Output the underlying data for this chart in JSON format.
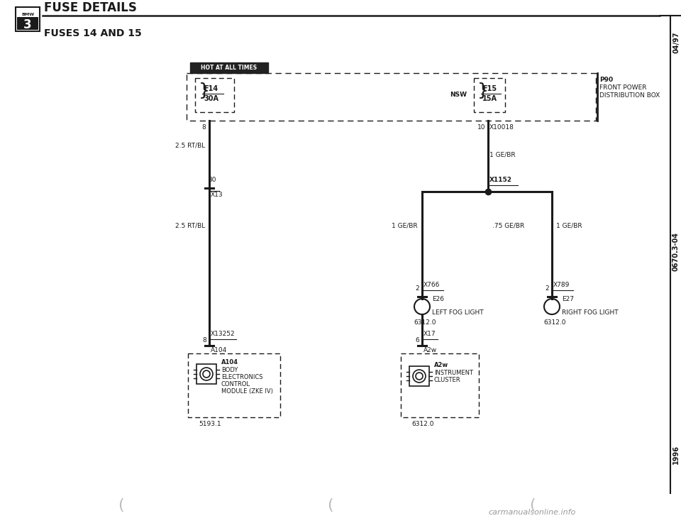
{
  "title": "FUSE DETAILS",
  "subtitle": "FUSES 14 AND 15",
  "bg_color": "#ffffff",
  "diagram_color": "#1a1a1a",
  "right_sidebar_labels": [
    "04/97",
    "0670.3-04",
    "1996"
  ],
  "watermark": "carmanualsonline.info",
  "hot_at_all_times_label": "HOT AT ALL TIMES",
  "fuse_f14": "F14\n30A",
  "fuse_f15": "F15\n15A",
  "p90_line1": "P90",
  "p90_line2": "FRONT POWER",
  "p90_line3": "DISTRIBUTION BOX",
  "connector_nsw": "NSW",
  "connector_x10018": "X10018",
  "wire_25rtbl": "2.5 RT/BL",
  "wire_1gebr": "1 GE/BR",
  "wire_75gebr": ".75 GE/BR",
  "connector_30": "30",
  "connector_x13": "X13",
  "connector_x1152": "X1152",
  "connector_x766": "X766",
  "connector_e26": "E26",
  "left_fog": "LEFT FOG LIGHT",
  "left_fog_val": "6312.0",
  "connector_x789": "X789",
  "connector_e27": "E27",
  "right_fog": "RIGHT FOG LIGHT",
  "right_fog_val": "6312.0",
  "pin8": "8",
  "connector_x13252": "X13252",
  "module_a104": "A104",
  "module_body_line1": "BODY",
  "module_body_line2": "ELECTRONICS",
  "module_body_line3": "CONTROL",
  "module_body_line4": "MODULE (ZKE IV)",
  "module_code": "5193.1",
  "pin6": "6",
  "connector_x17": "X17",
  "module_a2w": "A2w",
  "module_inst_line1": "INSTRUMENT",
  "module_inst_line2": "CLUSTER",
  "module_inst_code": "6312.0",
  "pin2": "2",
  "pin10": "10"
}
